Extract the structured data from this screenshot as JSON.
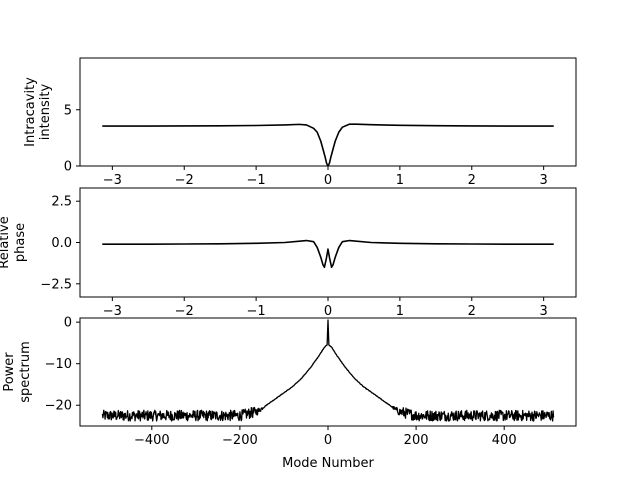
{
  "chart_data": [
    {
      "type": "line",
      "ylabel_lines": [
        "Intracavity",
        "intensity"
      ],
      "xlabel": "",
      "xlim": [
        -3.45,
        3.45
      ],
      "ylim": [
        0,
        9.6
      ],
      "xticks": [
        -3,
        -2,
        -1,
        0,
        1,
        2,
        3
      ],
      "xtick_labels": [
        "−3",
        "−2",
        "−1",
        "0",
        "1",
        "2",
        "3"
      ],
      "yticks": [
        0,
        5
      ],
      "ytick_labels": [
        "0",
        "5"
      ],
      "grid": false,
      "line_color": "#000000",
      "x": [
        -3.14,
        -2.5,
        -2.0,
        -1.5,
        -1.0,
        -0.6,
        -0.4,
        -0.3,
        -0.2,
        -0.15,
        -0.1,
        -0.07,
        -0.04,
        -0.02,
        0.0,
        0.02,
        0.04,
        0.07,
        0.1,
        0.15,
        0.2,
        0.3,
        0.4,
        0.6,
        1.0,
        1.5,
        2.0,
        2.5,
        3.14
      ],
      "y": [
        3.55,
        3.55,
        3.56,
        3.57,
        3.6,
        3.65,
        3.7,
        3.65,
        3.35,
        3.0,
        2.2,
        1.5,
        0.8,
        0.25,
        0.0,
        0.25,
        0.8,
        1.5,
        2.2,
        3.0,
        3.45,
        3.72,
        3.72,
        3.67,
        3.62,
        3.58,
        3.56,
        3.55,
        3.55
      ]
    },
    {
      "type": "line",
      "ylabel_lines": [
        "Relative",
        "phase"
      ],
      "xlabel": "",
      "xlim": [
        -3.45,
        3.45
      ],
      "ylim": [
        -3.3,
        3.3
      ],
      "xticks": [
        -3,
        -2,
        -1,
        0,
        1,
        2,
        3
      ],
      "xtick_labels": [
        "−3",
        "−2",
        "−1",
        "0",
        "1",
        "2",
        "3"
      ],
      "yticks": [
        -2.5,
        0,
        2.5
      ],
      "ytick_labels": [
        "−2.5",
        "0.0",
        "2.5"
      ],
      "grid": false,
      "line_color": "#000000",
      "x": [
        -3.14,
        -2.5,
        -2.0,
        -1.5,
        -1.0,
        -0.6,
        -0.3,
        -0.2,
        -0.15,
        -0.1,
        -0.07,
        -0.05,
        -0.02,
        0.0,
        0.02,
        0.05,
        0.07,
        0.1,
        0.15,
        0.2,
        0.3,
        0.6,
        1.0,
        1.5,
        2.0,
        2.5,
        3.14
      ],
      "y": [
        -0.1,
        -0.1,
        -0.09,
        -0.08,
        -0.05,
        0.0,
        0.12,
        0.05,
        -0.3,
        -0.9,
        -1.35,
        -1.5,
        -0.9,
        -0.4,
        -0.9,
        -1.5,
        -1.35,
        -0.9,
        -0.3,
        0.05,
        0.12,
        0.0,
        -0.05,
        -0.08,
        -0.09,
        -0.1,
        -0.1
      ]
    },
    {
      "type": "line",
      "ylabel_lines": [
        "Power",
        "spectrum"
      ],
      "xlabel": "Mode Number",
      "xlim": [
        -563,
        563
      ],
      "ylim": [
        -25,
        1
      ],
      "xticks": [
        -400,
        -200,
        0,
        200,
        400
      ],
      "xtick_labels": [
        "−400",
        "−200",
        "0",
        "200",
        "400"
      ],
      "yticks": [
        -20,
        -10,
        0
      ],
      "ytick_labels": [
        "−20",
        "−10",
        "0"
      ],
      "grid": false,
      "line_color": "#000000",
      "envelope_x": [
        -512,
        -200,
        -160,
        -140,
        -120,
        -100,
        -80,
        -60,
        -40,
        -20,
        -8,
        -2,
        0,
        2,
        8,
        20,
        40,
        60,
        80,
        100,
        120,
        140,
        160,
        200,
        512
      ],
      "envelope_y": [
        -22.5,
        -22.5,
        -21.5,
        -20.0,
        -18.5,
        -17.0,
        -15.5,
        -13.5,
        -11.0,
        -8.0,
        -6.0,
        -5.5,
        0.5,
        -5.5,
        -6.0,
        -8.0,
        -11.0,
        -13.5,
        -15.5,
        -17.0,
        -18.5,
        -20.0,
        -21.5,
        -22.5,
        -22.5
      ]
    }
  ]
}
